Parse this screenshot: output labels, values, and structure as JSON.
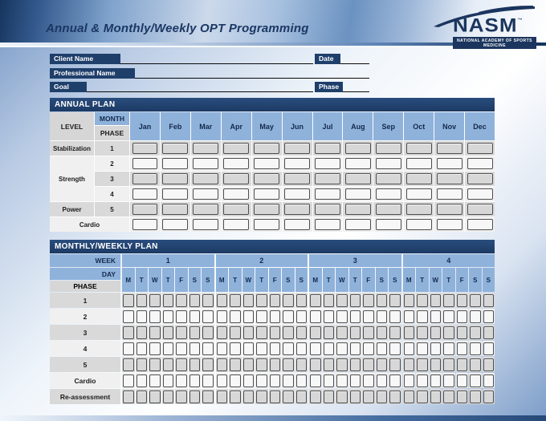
{
  "colors": {
    "navy": "#1f3f6b",
    "dark_navy": "#1b355e",
    "light_blue": "#8fb2db",
    "gray_cell": "#d9d9d9",
    "light_cell": "#f0f0f0",
    "title_text": "#1b3763"
  },
  "header": {
    "title": "Annual & Monthly/Weekly OPT Programming"
  },
  "logo": {
    "name": "NASM",
    "tm": "™",
    "tagline": "NATIONAL ACADEMY OF SPORTS MEDICINE"
  },
  "form": {
    "client_name": {
      "label": "Client Name",
      "value": ""
    },
    "date": {
      "label": "Date",
      "value": ""
    },
    "professional_name": {
      "label": "Professional Name",
      "value": ""
    },
    "goal": {
      "label": "Goal",
      "value": ""
    },
    "phase": {
      "label": "Phase",
      "value": ""
    }
  },
  "annual_plan": {
    "title": "ANNUAL PLAN",
    "headers": {
      "level": "LEVEL",
      "month": "MONTH",
      "phase": "PHASE"
    },
    "months": [
      "Jan",
      "Feb",
      "Mar",
      "Apr",
      "May",
      "Jun",
      "Jul",
      "Aug",
      "Sep",
      "Oct",
      "Nov",
      "Dec"
    ],
    "rows": [
      {
        "level": "Stabilization",
        "level_rowspan": 1,
        "phase": "1",
        "shade": "dark"
      },
      {
        "level": "Strength",
        "level_rowspan": 3,
        "phase": "2",
        "shade": "light"
      },
      {
        "phase": "3",
        "shade": "dark"
      },
      {
        "phase": "4",
        "shade": "light"
      },
      {
        "level": "Power",
        "level_rowspan": 1,
        "phase": "5",
        "shade": "dark"
      },
      {
        "label": "Cardio",
        "merged_label": true,
        "shade": "light"
      }
    ],
    "cell_value": ""
  },
  "monthly_plan": {
    "title": "MONTHLY/WEEKLY PLAN",
    "headers": {
      "week": "WEEK",
      "day": "DAY",
      "phase": "PHASE"
    },
    "weeks": [
      "1",
      "2",
      "3",
      "4"
    ],
    "days": [
      "M",
      "T",
      "W",
      "T",
      "F",
      "S",
      "S"
    ],
    "rows": [
      {
        "label": "1",
        "shade": "dark"
      },
      {
        "label": "2",
        "shade": "light"
      },
      {
        "label": "3",
        "shade": "dark"
      },
      {
        "label": "4",
        "shade": "light"
      },
      {
        "label": "5",
        "shade": "dark"
      },
      {
        "label": "Cardio",
        "shade": "light"
      },
      {
        "label": "Re-assessment",
        "shade": "dark"
      }
    ],
    "cell_value": ""
  }
}
